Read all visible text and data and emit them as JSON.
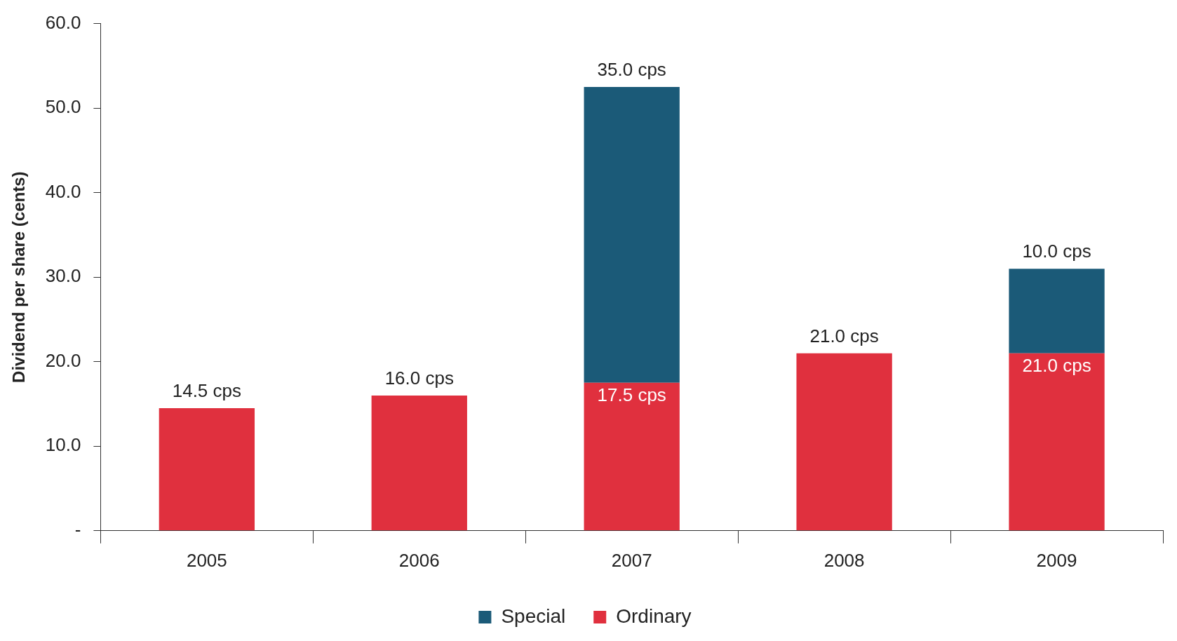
{
  "chart_data": {
    "type": "bar",
    "stacked": true,
    "ylabel": "Dividend per share (cents)",
    "categories": [
      "2005",
      "2006",
      "2007",
      "2008",
      "2009"
    ],
    "series": [
      {
        "name": "Ordinary",
        "color": "#e0303e",
        "values": [
          14.5,
          16.0,
          17.5,
          21.0,
          21.0
        ],
        "value_labels": [
          "14.5 cps",
          "16.0 cps",
          "17.5 cps",
          "21.0 cps",
          "21.0 cps"
        ]
      },
      {
        "name": "Special",
        "color": "#1b5a78",
        "values": [
          null,
          null,
          35.0,
          null,
          10.0
        ],
        "value_labels": [
          null,
          null,
          "35.0 cps",
          null,
          "10.0 cps"
        ]
      }
    ],
    "ylim": [
      0,
      60
    ],
    "yticks": [
      {
        "value": 0,
        "label": "-"
      },
      {
        "value": 10,
        "label": "10.0"
      },
      {
        "value": 20,
        "label": "20.0"
      },
      {
        "value": 30,
        "label": "30.0"
      },
      {
        "value": 40,
        "label": "40.0"
      },
      {
        "value": 50,
        "label": "50.0"
      },
      {
        "value": 60,
        "label": "60.0"
      }
    ],
    "grid": false,
    "legend": "bottom"
  }
}
